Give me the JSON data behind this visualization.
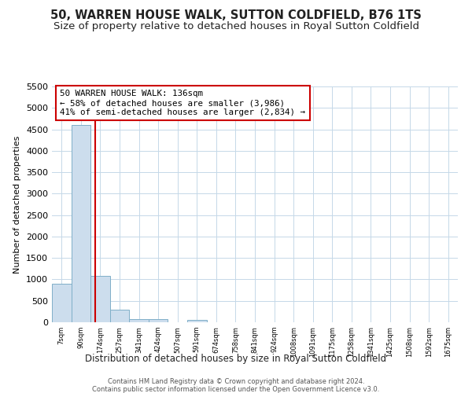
{
  "title": "50, WARREN HOUSE WALK, SUTTON COLDFIELD, B76 1TS",
  "subtitle": "Size of property relative to detached houses in Royal Sutton Coldfield",
  "xlabel": "Distribution of detached houses by size in Royal Sutton Coldfield",
  "ylabel": "Number of detached properties",
  "bar_values": [
    900,
    4600,
    1075,
    300,
    80,
    75,
    0,
    50,
    0,
    0,
    0,
    0,
    0,
    0,
    0,
    0,
    0,
    0,
    0,
    0,
    0
  ],
  "bar_labels": [
    "7sqm",
    "90sqm",
    "174sqm",
    "257sqm",
    "341sqm",
    "424sqm",
    "507sqm",
    "591sqm",
    "674sqm",
    "758sqm",
    "841sqm",
    "924sqm",
    "1008sqm",
    "1091sqm",
    "1175sqm",
    "1258sqm",
    "1341sqm",
    "1425sqm",
    "1508sqm",
    "1592sqm",
    "1675sqm"
  ],
  "bar_color": "#ccdded",
  "bar_edge_color": "#7fafc8",
  "red_line_x": 1.72,
  "highlight_line_color": "#cc0000",
  "ylim": [
    0,
    5500
  ],
  "yticks": [
    0,
    500,
    1000,
    1500,
    2000,
    2500,
    3000,
    3500,
    4000,
    4500,
    5000,
    5500
  ],
  "annotation_line1": "50 WARREN HOUSE WALK: 136sqm",
  "annotation_line2": "← 58% of detached houses are smaller (3,986)",
  "annotation_line3": "41% of semi-detached houses are larger (2,834) →",
  "annotation_box_color": "#ffffff",
  "annotation_border_color": "#cc0000",
  "footer_line1": "Contains HM Land Registry data © Crown copyright and database right 2024.",
  "footer_line2": "Contains public sector information licensed under the Open Government Licence v3.0.",
  "background_color": "#ffffff",
  "grid_color": "#c5d8e8",
  "title_fontsize": 10.5,
  "subtitle_fontsize": 9.5
}
